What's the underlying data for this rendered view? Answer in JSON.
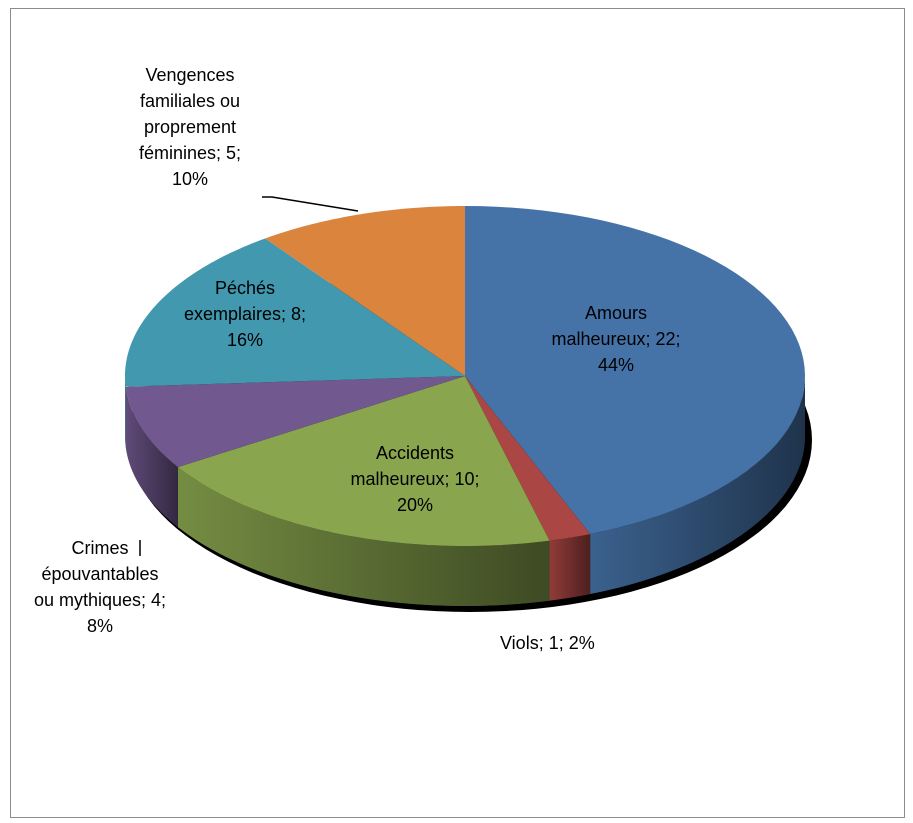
{
  "chart_data": {
    "type": "pie",
    "values": [
      22,
      1,
      10,
      4,
      8,
      5
    ],
    "value_labels": [
      "Amours malheureux; 22; 44%",
      "Viols; 1; 2%",
      "Accidents malheureux; 10; 20%",
      "Crimes épouvantables ou mythiques; 4; 8%",
      "Péchés exemplaires; 8; 16%",
      "Vengences familiales ou proprement féminines; 5; 10%"
    ],
    "colors": [
      "#4572A7",
      "#AA4643",
      "#89A54E",
      "#71588F",
      "#4198AF",
      "#DB843D"
    ],
    "start_angle": 0,
    "direction": "clockwise",
    "style": "3d"
  }
}
